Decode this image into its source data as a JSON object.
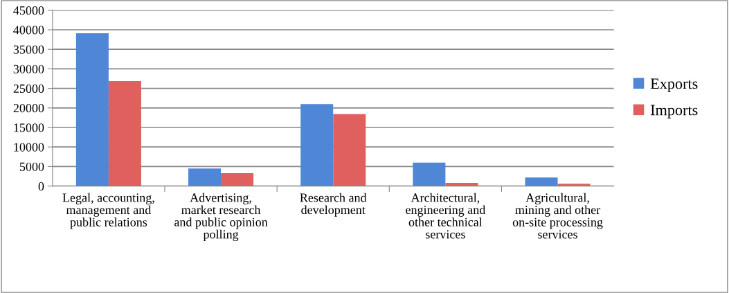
{
  "chart_data": {
    "type": "bar",
    "categories": [
      "Legal, accounting, management and public relations",
      "Advertising, market research and public opinion polling",
      "Research and development",
      "Architectural, engineering and other technical services",
      "Agricultural, mining and other on-site processing services"
    ],
    "series": [
      {
        "name": "Exports",
        "color": "#4f86d6",
        "values": [
          39100,
          4500,
          21000,
          6000,
          2200
        ]
      },
      {
        "name": "Imports",
        "color": "#e06060",
        "values": [
          26900,
          3300,
          18400,
          800,
          600
        ]
      }
    ],
    "ylim": [
      0,
      45000
    ],
    "yticks": [
      0,
      5000,
      10000,
      15000,
      20000,
      25000,
      30000,
      35000,
      40000,
      45000
    ],
    "grid": "y",
    "legend": "right"
  }
}
